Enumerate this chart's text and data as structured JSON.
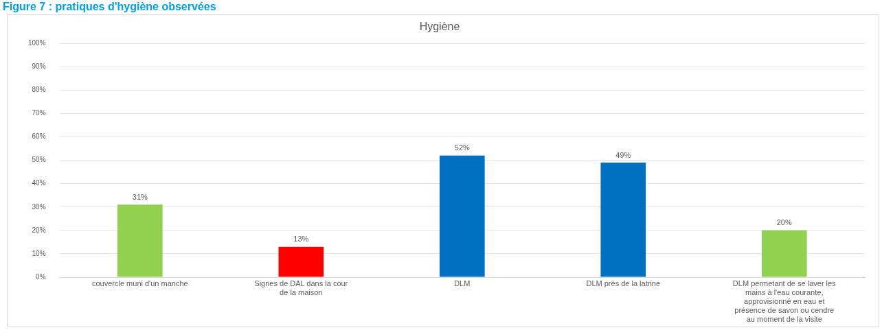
{
  "chart_data": {
    "type": "bar",
    "title": "Figure 7 : pratiques d'hygiène observées",
    "subtitle": "Hygiène",
    "categories": [
      "couvercle muni d'un manche",
      "Signes de DAL dans la cour de la maison",
      "DLM",
      "DLM près de la latrine",
      "DLM permetant de se laver les mains à l'eau courante, approvisionné en eau et présence de savon ou cendre au moment de la visite"
    ],
    "values": [
      31,
      13,
      52,
      49,
      20
    ],
    "colors": [
      "#92d050",
      "#ff0000",
      "#0070c0",
      "#0070c0",
      "#92d050"
    ],
    "ylim": [
      0,
      100
    ],
    "yticks": [
      {
        "value": 0,
        "label": "0%"
      },
      {
        "value": 10,
        "label": "10%"
      },
      {
        "value": 20,
        "label": "20%"
      },
      {
        "value": 30,
        "label": "30%"
      },
      {
        "value": 40,
        "label": "40%"
      },
      {
        "value": 50,
        "label": "50%"
      },
      {
        "value": 60,
        "label": "60%"
      },
      {
        "value": 70,
        "label": "70%"
      },
      {
        "value": 80,
        "label": "80%"
      },
      {
        "value": 90,
        "label": "90%"
      },
      {
        "value": 100,
        "label": "100%"
      }
    ],
    "value_labels": [
      "31%",
      "13%",
      "52%",
      "49%",
      "20%"
    ],
    "grid": "y",
    "legend": false
  }
}
